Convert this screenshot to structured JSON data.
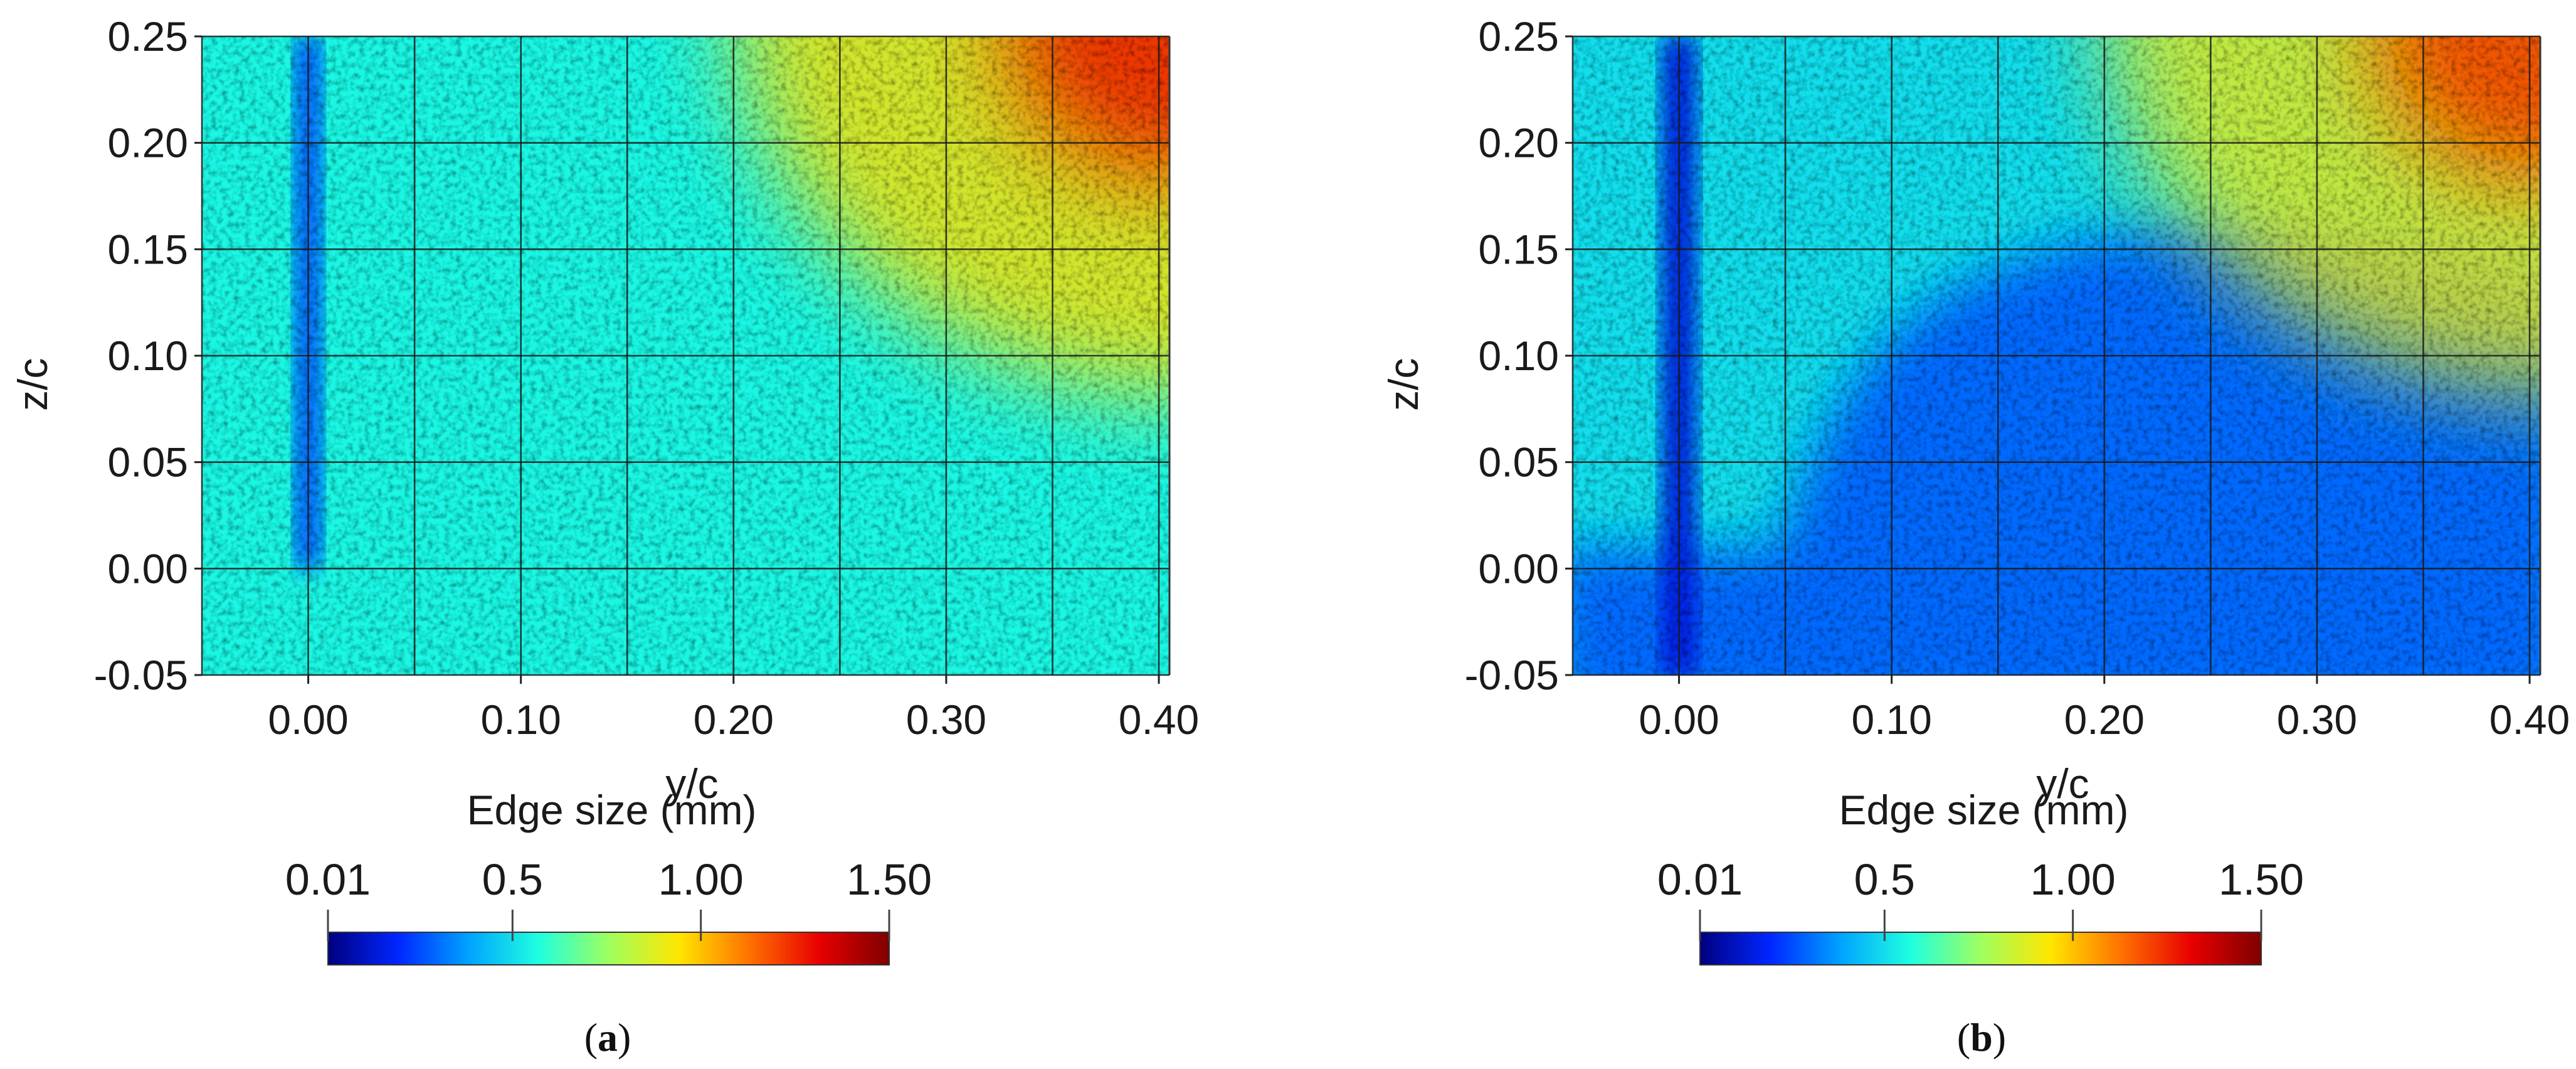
{
  "chart_data": [
    {
      "type": "heatmap",
      "panel": "a",
      "caption": "(a)",
      "caption_bold": "a",
      "xlabel": "y/c",
      "ylabel": "z/c",
      "xlim": [
        -0.05,
        0.405
      ],
      "ylim": [
        -0.05,
        0.25
      ],
      "x_ticks": [
        0.0,
        0.1,
        0.2,
        0.3,
        0.4
      ],
      "x_tick_labels": [
        "0.00",
        "0.10",
        "0.20",
        "0.30",
        "0.40"
      ],
      "y_ticks": [
        -0.05,
        0.0,
        0.05,
        0.1,
        0.15,
        0.2,
        0.25
      ],
      "y_tick_labels": [
        "-0.05",
        "0.00",
        "0.05",
        "0.10",
        "0.15",
        "0.20",
        "0.25"
      ],
      "grid": true,
      "grid_x": [
        -0.05,
        0.0,
        0.05,
        0.1,
        0.15,
        0.2,
        0.25,
        0.3,
        0.35,
        0.4
      ],
      "grid_y": [
        -0.05,
        0.0,
        0.05,
        0.1,
        0.15,
        0.2,
        0.25
      ],
      "field": {
        "quantity": "Edge size (mm)",
        "background_mm": 0.55,
        "refined_strip": {
          "y_center": 0.0,
          "half_width": 0.006,
          "z_min": 0.0,
          "value_mm": 0.25
        },
        "coarsening_toward": "top-right",
        "max_mm": 1.25
      },
      "colorbar": {
        "title": "Edge size (mm)",
        "min": 0.01,
        "max": 1.5,
        "ticks": [
          0.01,
          0.5,
          1.0,
          1.5
        ],
        "tick_labels": [
          "0.01",
          "0.5",
          "1.00",
          "1.50"
        ],
        "colormap": [
          "#00007f",
          "#0026ff",
          "#00a2ff",
          "#1fffe0",
          "#9eff5f",
          "#ffe600",
          "#ff7200",
          "#e80000",
          "#7f0000"
        ]
      }
    },
    {
      "type": "heatmap",
      "panel": "b",
      "caption": "(b)",
      "caption_bold": "b",
      "xlabel": "y/c",
      "ylabel": "z/c",
      "xlim": [
        -0.05,
        0.405
      ],
      "ylim": [
        -0.05,
        0.25
      ],
      "x_ticks": [
        0.0,
        0.1,
        0.2,
        0.3,
        0.4
      ],
      "x_tick_labels": [
        "0.00",
        "0.10",
        "0.20",
        "0.30",
        "0.40"
      ],
      "y_ticks": [
        -0.05,
        0.0,
        0.05,
        0.1,
        0.15,
        0.2,
        0.25
      ],
      "y_tick_labels": [
        "-0.05",
        "0.00",
        "0.05",
        "0.10",
        "0.15",
        "0.20",
        "0.25"
      ],
      "grid": true,
      "grid_x": [
        -0.05,
        0.0,
        0.05,
        0.1,
        0.15,
        0.2,
        0.25,
        0.3,
        0.35,
        0.4
      ],
      "grid_y": [
        -0.05,
        0.0,
        0.05,
        0.1,
        0.15,
        0.2,
        0.25
      ],
      "field": {
        "quantity": "Edge size (mm)",
        "background_mm": 0.5,
        "refined_strip": {
          "y_center": 0.0,
          "half_width": 0.008,
          "z_min": -0.05,
          "value_mm": 0.15
        },
        "refined_region_mm": 0.3,
        "coarsening_toward": "top-right",
        "max_mm": 1.2
      },
      "colorbar": {
        "title": "Edge size (mm)",
        "min": 0.01,
        "max": 1.5,
        "ticks": [
          0.01,
          0.5,
          1.0,
          1.5
        ],
        "tick_labels": [
          "0.01",
          "0.5",
          "1.00",
          "1.50"
        ],
        "colormap": [
          "#00007f",
          "#0026ff",
          "#00a2ff",
          "#1fffe0",
          "#9eff5f",
          "#ffe600",
          "#ff7200",
          "#e80000",
          "#7f0000"
        ]
      }
    }
  ]
}
